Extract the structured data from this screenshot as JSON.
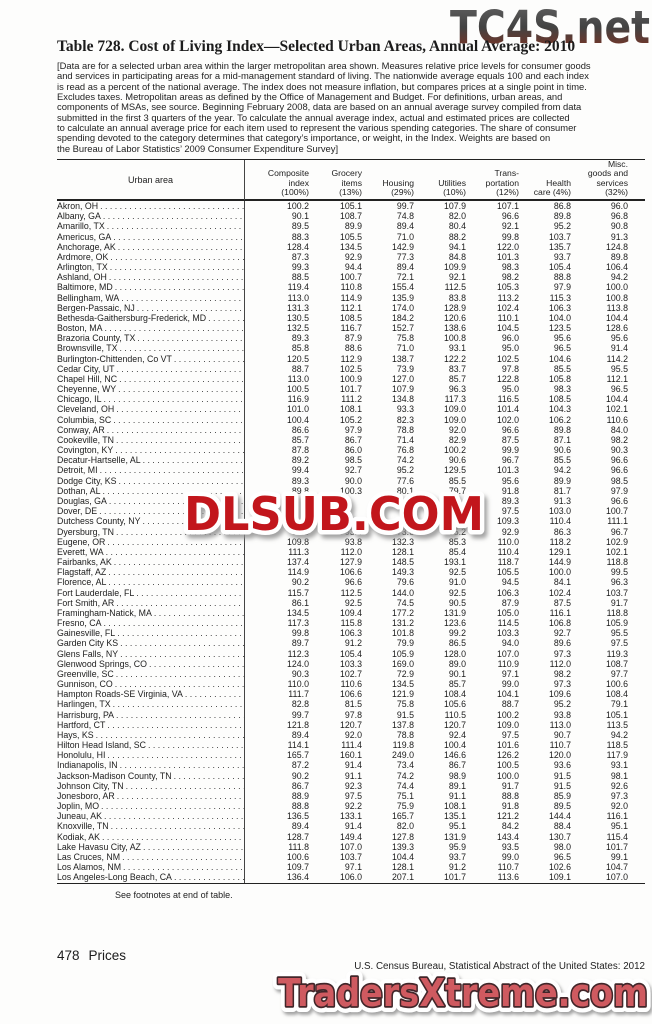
{
  "watermarks": {
    "top": "TC4S.net",
    "middle": "DLSUB.COM",
    "bottom": "TradersXtreme.com",
    "red": "#c2191f",
    "salmon": "#cf5a60"
  },
  "title": "Table 728. Cost of Living Index—Selected Urban Areas, Annual Average: 2010",
  "note": "[Data are for a selected urban area within the larger metropolitan area shown. Measures relative price levels for consumer goods\nand services in participating areas for a mid-management standard of living. The nationwide average equals 100 and each index\nis read as a percent of the national average. The index does not measure inflation, but compares prices at a single point in time.\nExcludes taxes. Metropolitan areas as defined by the Office of Management and Budget. For definitions, urban areas, and\ncomponents of MSAs, see source. Beginning February 2008, data are based on an annual average survey compiled from data\nsubmitted in the first 3 quarters of the year. To calculate the annual average index, actual and estimated prices are collected\nto calculate an annual average price for each item used to represent the various spending categories. The share of consumer\nspending devoted to the category determines that category’s importance, or weight, in the Index. Weights are based on\nthe Bureau of Labor Statistics’ 2009 Consumer Expenditure Survey]",
  "table": {
    "urban_area_header": "Urban area",
    "columns": [
      {
        "label": "Composite\nindex\n(100%)"
      },
      {
        "label": "Grocery\nitems\n(13%)"
      },
      {
        "label": "Housing\n(29%)"
      },
      {
        "label": "Utilities\n(10%)"
      },
      {
        "label": "Trans-\nportation\n(12%)"
      },
      {
        "label": "Health\ncare (4%)"
      },
      {
        "label": "Misc.\ngoods and\nservices\n(32%)"
      }
    ],
    "rows": [
      {
        "name": "Akron, OH",
        "values": [
          "100.2",
          "105.1",
          "99.7",
          "107.9",
          "107.1",
          "86.8",
          "96.0"
        ]
      },
      {
        "name": "Albany, GA",
        "values": [
          "90.1",
          "108.7",
          "74.8",
          "82.0",
          "96.6",
          "89.8",
          "96.8"
        ]
      },
      {
        "name": "Amarillo, TX",
        "values": [
          "89.5",
          "89.9",
          "89.4",
          "80.4",
          "92.1",
          "95.2",
          "90.8"
        ]
      },
      {
        "name": "Americus, GA",
        "values": [
          "88.3",
          "105.5",
          "71.0",
          "88.2",
          "99.8",
          "103.7",
          "91.3"
        ]
      },
      {
        "name": "Anchorage, AK",
        "values": [
          "128.4",
          "134.5",
          "142.9",
          "94.1",
          "122.0",
          "135.7",
          "124.8"
        ]
      },
      {
        "name": "Ardmore, OK",
        "values": [
          "87.3",
          "92.9",
          "77.3",
          "84.8",
          "101.3",
          "93.7",
          "89.8"
        ]
      },
      {
        "name": "Arlington, TX",
        "values": [
          "99.3",
          "94.4",
          "89.4",
          "109.9",
          "98.3",
          "105.4",
          "106.4"
        ]
      },
      {
        "name": "Ashland, OH",
        "values": [
          "88.5",
          "100.7",
          "72.1",
          "92.1",
          "98.2",
          "88.8",
          "94.2"
        ]
      },
      {
        "name": "Baltimore, MD",
        "values": [
          "119.4",
          "110.8",
          "155.4",
          "112.5",
          "105.3",
          "97.9",
          "100.0"
        ]
      },
      {
        "name": "Bellingham, WA",
        "values": [
          "113.0",
          "114.9",
          "135.9",
          "83.8",
          "113.2",
          "115.3",
          "100.8"
        ]
      },
      {
        "name": "Bergen-Passaic, NJ",
        "values": [
          "131.3",
          "112.1",
          "174.0",
          "128.9",
          "102.4",
          "106.3",
          "113.8"
        ]
      },
      {
        "name": "Bethesda-Gaithersburg-Frederick, MD",
        "values": [
          "130.5",
          "108.5",
          "184.2",
          "120.6",
          "110.1",
          "104.0",
          "104.4"
        ]
      },
      {
        "name": "Boston, MA",
        "values": [
          "132.5",
          "116.7",
          "152.7",
          "138.6",
          "104.5",
          "123.5",
          "128.6"
        ]
      },
      {
        "name": "Brazoria County, TX",
        "values": [
          "89.3",
          "87.9",
          "75.8",
          "100.8",
          "96.0",
          "95.6",
          "95.6"
        ]
      },
      {
        "name": "Brownsville, TX",
        "values": [
          "85.8",
          "88.6",
          "71.0",
          "93.1",
          "95.0",
          "96.5",
          "91.4"
        ]
      },
      {
        "name": "Burlington-Chittenden, Co VT",
        "values": [
          "120.5",
          "112.9",
          "138.7",
          "122.2",
          "102.5",
          "104.6",
          "114.2"
        ]
      },
      {
        "name": "Cedar City, UT",
        "values": [
          "88.7",
          "102.5",
          "73.9",
          "83.7",
          "97.8",
          "85.5",
          "95.5"
        ]
      },
      {
        "name": "Chapel Hill, NC",
        "values": [
          "113.0",
          "100.9",
          "127.0",
          "85.7",
          "122.8",
          "105.8",
          "112.1"
        ]
      },
      {
        "name": "Cheyenne, WY",
        "values": [
          "100.5",
          "101.7",
          "107.9",
          "96.3",
          "95.0",
          "98.3",
          "96.5"
        ]
      },
      {
        "name": "Chicago, IL",
        "values": [
          "116.9",
          "111.2",
          "134.8",
          "117.3",
          "116.5",
          "108.5",
          "104.4"
        ]
      },
      {
        "name": "Cleveland, OH",
        "values": [
          "101.0",
          "108.1",
          "93.3",
          "109.0",
          "101.4",
          "104.3",
          "102.1"
        ]
      },
      {
        "name": "Columbia, SC",
        "values": [
          "100.4",
          "105.2",
          "82.3",
          "109.0",
          "102.0",
          "106.2",
          "110.6"
        ]
      },
      {
        "name": "Conway, AR",
        "values": [
          "86.6",
          "97.9",
          "78.8",
          "92.0",
          "96.6",
          "89.8",
          "84.0"
        ]
      },
      {
        "name": "Cookeville, TN",
        "values": [
          "85.7",
          "86.7",
          "71.4",
          "82.9",
          "87.5",
          "87.1",
          "98.2"
        ]
      },
      {
        "name": "Covington, KY",
        "values": [
          "87.8",
          "86.0",
          "76.8",
          "100.2",
          "99.9",
          "90.6",
          "90.3"
        ]
      },
      {
        "name": "Decatur-Hartselle, AL",
        "values": [
          "89.2",
          "98.5",
          "74.2",
          "90.6",
          "96.7",
          "85.5",
          "96.6"
        ]
      },
      {
        "name": "Detroit, MI",
        "values": [
          "99.4",
          "92.7",
          "95.2",
          "129.5",
          "101.3",
          "94.2",
          "96.6"
        ]
      },
      {
        "name": "Dodge City, KS",
        "values": [
          "89.3",
          "90.0",
          "77.6",
          "85.5",
          "95.6",
          "89.9",
          "98.5"
        ]
      },
      {
        "name": "Dothan, AL",
        "values": [
          "89.8",
          "100.3",
          "80.1",
          "79.7",
          "91.8",
          "81.7",
          "97.9"
        ]
      },
      {
        "name": "Douglas, GA",
        "values": [
          "",
          "",
          "",
          "",
          "89.3",
          "91.3",
          "96.6"
        ]
      },
      {
        "name": "Dover, DE",
        "values": [
          "",
          "",
          "",
          "",
          "97.5",
          "103.0",
          "100.7"
        ]
      },
      {
        "name": "Dutchess County, NY",
        "values": [
          "",
          "",
          "",
          "",
          "109.3",
          "110.4",
          "111.1"
        ]
      },
      {
        "name": "Dyersburg, TN",
        "values": [
          "86.6",
          "93.4",
          "73.6",
          "95.2",
          "92.9",
          "86.3",
          "96.7"
        ]
      },
      {
        "name": "Eugene, OR",
        "values": [
          "109.8",
          "93.8",
          "132.3",
          "85.3",
          "110.0",
          "118.2",
          "102.9"
        ]
      },
      {
        "name": "Everett, WA",
        "values": [
          "111.3",
          "112.0",
          "128.1",
          "85.4",
          "110.4",
          "129.1",
          "102.1"
        ]
      },
      {
        "name": "Fairbanks, AK",
        "values": [
          "137.4",
          "127.9",
          "148.5",
          "193.1",
          "118.7",
          "144.9",
          "118.8"
        ]
      },
      {
        "name": "Flagstaff, AZ",
        "values": [
          "114.9",
          "106.6",
          "149.3",
          "92.5",
          "105.5",
          "100.0",
          "99.5"
        ]
      },
      {
        "name": "Florence, AL",
        "values": [
          "90.2",
          "96.6",
          "79.6",
          "91.0",
          "94.5",
          "84.1",
          "96.3"
        ]
      },
      {
        "name": "Fort Lauderdale, FL",
        "values": [
          "115.7",
          "112.5",
          "144.0",
          "92.5",
          "106.3",
          "102.4",
          "103.7"
        ]
      },
      {
        "name": "Fort Smith, AR",
        "values": [
          "86.1",
          "92.5",
          "74.5",
          "90.5",
          "87.9",
          "87.5",
          "91.7"
        ]
      },
      {
        "name": "Framingham-Natick, MA",
        "values": [
          "134.5",
          "109.4",
          "177.2",
          "131.9",
          "105.0",
          "116.1",
          "118.8"
        ]
      },
      {
        "name": "Fresno, CA",
        "values": [
          "117.3",
          "115.8",
          "131.2",
          "123.6",
          "114.5",
          "106.8",
          "105.9"
        ]
      },
      {
        "name": "Gainesville, FL",
        "values": [
          "99.8",
          "106.3",
          "101.8",
          "99.2",
          "103.3",
          "92.7",
          "95.5"
        ]
      },
      {
        "name": "Garden City KS",
        "values": [
          "89.7",
          "91.2",
          "79.9",
          "86.5",
          "94.0",
          "89.6",
          "97.5"
        ]
      },
      {
        "name": "Glens Falls, NY",
        "values": [
          "112.3",
          "105.4",
          "105.9",
          "128.0",
          "107.0",
          "97.3",
          "119.3"
        ]
      },
      {
        "name": "Glenwood Springs, CO",
        "values": [
          "124.0",
          "103.3",
          "169.0",
          "89.0",
          "110.9",
          "112.0",
          "108.7"
        ]
      },
      {
        "name": "Greenville, SC",
        "values": [
          "90.3",
          "102.7",
          "72.9",
          "90.1",
          "97.1",
          "98.2",
          "97.7"
        ]
      },
      {
        "name": "Gunnison, CO",
        "values": [
          "110.0",
          "110.6",
          "134.5",
          "85.7",
          "99.0",
          "97.3",
          "100.6"
        ]
      },
      {
        "name": "Hampton Roads-SE Virginia, VA",
        "values": [
          "111.7",
          "106.6",
          "121.9",
          "108.4",
          "104.1",
          "109.6",
          "108.4"
        ]
      },
      {
        "name": "Harlingen, TX",
        "values": [
          "82.8",
          "81.5",
          "75.8",
          "105.6",
          "88.7",
          "95.2",
          "79.1"
        ]
      },
      {
        "name": "Harrisburg, PA",
        "values": [
          "99.7",
          "97.8",
          "91.5",
          "110.5",
          "100.2",
          "93.8",
          "105.1"
        ]
      },
      {
        "name": "Hartford, CT",
        "values": [
          "121.8",
          "120.7",
          "137.8",
          "120.7",
          "109.0",
          "113.0",
          "113.5"
        ]
      },
      {
        "name": "Hays, KS",
        "values": [
          "89.4",
          "92.0",
          "78.8",
          "92.4",
          "97.5",
          "90.7",
          "94.2"
        ]
      },
      {
        "name": "Hilton Head Island, SC",
        "values": [
          "114.1",
          "111.4",
          "119.8",
          "100.4",
          "101.6",
          "110.7",
          "118.5"
        ]
      },
      {
        "name": "Honolulu, HI",
        "values": [
          "165.7",
          "160.1",
          "249.0",
          "146.6",
          "126.2",
          "120.0",
          "117.9"
        ]
      },
      {
        "name": "Indianapolis, IN",
        "values": [
          "87.2",
          "91.4",
          "73.4",
          "86.7",
          "100.5",
          "93.6",
          "93.1"
        ]
      },
      {
        "name": "Jackson-Madison County, TN",
        "values": [
          "90.2",
          "91.1",
          "74.2",
          "98.9",
          "100.0",
          "91.5",
          "98.1"
        ]
      },
      {
        "name": "Johnson City, TN",
        "values": [
          "86.7",
          "92.3",
          "74.4",
          "89.1",
          "91.7",
          "91.5",
          "92.6"
        ]
      },
      {
        "name": "Jonesboro, AR",
        "values": [
          "88.9",
          "97.5",
          "75.1",
          "91.1",
          "88.8",
          "85.9",
          "97.3"
        ]
      },
      {
        "name": "Joplin, MO",
        "values": [
          "88.8",
          "92.2",
          "75.9",
          "108.1",
          "91.8",
          "89.5",
          "92.0"
        ]
      },
      {
        "name": "Juneau, AK",
        "values": [
          "136.5",
          "133.1",
          "165.7",
          "135.1",
          "121.2",
          "144.4",
          "116.1"
        ]
      },
      {
        "name": "Knoxville, TN",
        "values": [
          "89.4",
          "91.4",
          "82.0",
          "95.1",
          "84.2",
          "88.4",
          "95.1"
        ]
      },
      {
        "name": "Kodiak, AK",
        "values": [
          "128.7",
          "149.4",
          "127.8",
          "131.9",
          "143.4",
          "130.7",
          "115.4"
        ]
      },
      {
        "name": "Lake Havasu City, AZ",
        "values": [
          "111.8",
          "107.0",
          "139.3",
          "95.9",
          "93.5",
          "98.0",
          "101.7"
        ]
      },
      {
        "name": "Las Cruces, NM",
        "values": [
          "100.6",
          "103.7",
          "104.4",
          "93.7",
          "99.0",
          "96.5",
          "99.1"
        ]
      },
      {
        "name": "Los Alamos, NM",
        "values": [
          "109.7",
          "97.1",
          "128.1",
          "91.2",
          "110.7",
          "102.6",
          "104.7"
        ]
      },
      {
        "name": "Los Angeles-Long Beach, CA",
        "values": [
          "136.4",
          "106.0",
          "207.1",
          "101.7",
          "113.6",
          "109.1",
          "107.0"
        ]
      }
    ],
    "footnote": "See footnotes at end of table."
  },
  "footer": {
    "page": "478",
    "section": "Prices",
    "source": "U.S. Census Bureau, Statistical Abstract of the United States: 2012"
  }
}
